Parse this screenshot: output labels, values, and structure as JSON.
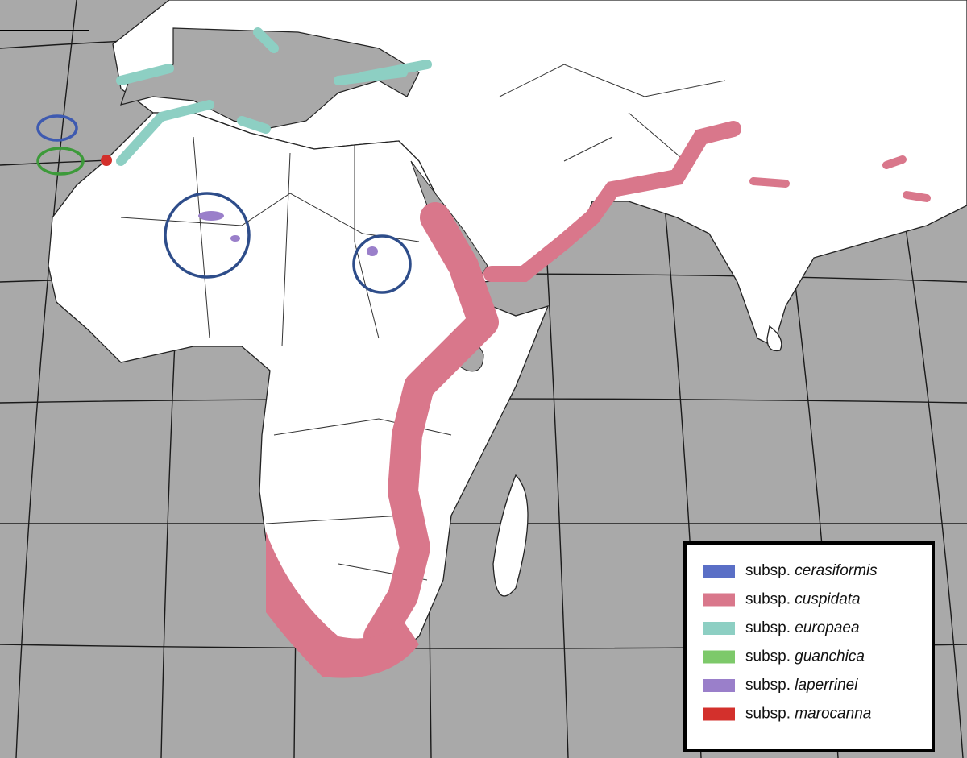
{
  "legend": {
    "items": [
      {
        "prefix": "subsp.",
        "name": "cerasiformis",
        "color": "#5a6fc6"
      },
      {
        "prefix": "subsp.",
        "name": "cuspidata",
        "color": "#d9778b"
      },
      {
        "prefix": "subsp.",
        "name": "europaea",
        "color": "#8dcfc3"
      },
      {
        "prefix": "subsp.",
        "name": "guanchica",
        "color": "#7dc96a"
      },
      {
        "prefix": "subsp.",
        "name": "laperrinei",
        "color": "#9a7fca"
      },
      {
        "prefix": "subsp.",
        "name": "marocanna",
        "color": "#d3302c"
      }
    ]
  }
}
